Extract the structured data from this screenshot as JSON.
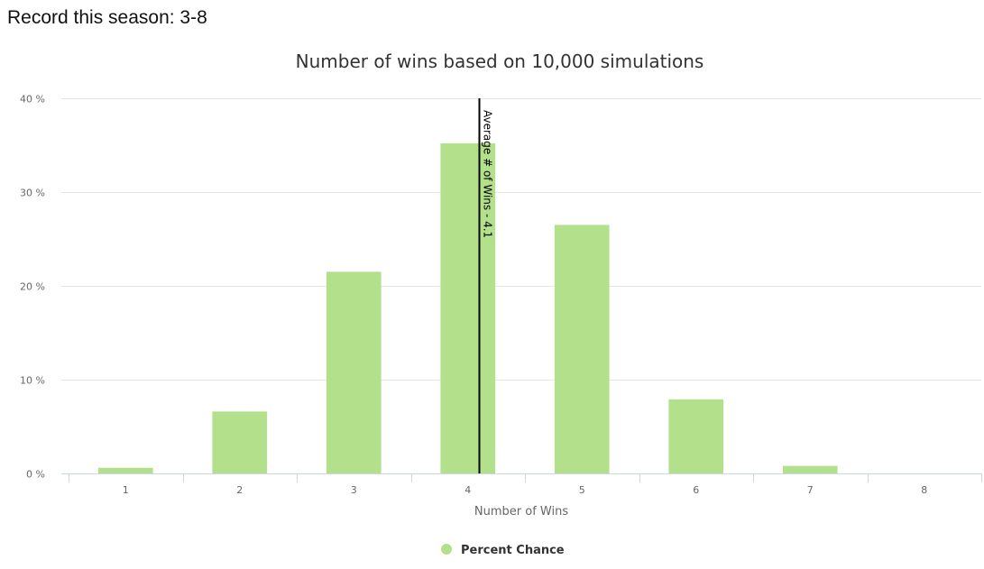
{
  "header": {
    "record_text": "Record this season: 3-8"
  },
  "chart_data": {
    "type": "bar",
    "title": "Number of wins based on 10,000 simulations",
    "xlabel": "Number of Wins",
    "ylabel": "",
    "categories": [
      "1",
      "2",
      "3",
      "4",
      "5",
      "6",
      "7",
      "8"
    ],
    "series": [
      {
        "name": "Percent Chance",
        "color": "#b3e08a",
        "values": [
          0.6,
          6.6,
          21.5,
          35.2,
          26.5,
          7.9,
          0.8,
          0.0
        ]
      }
    ],
    "ylim": [
      0,
      40
    ],
    "yticks": [
      0,
      10,
      20,
      30,
      40
    ],
    "ytick_labels": [
      "0 %",
      "10 %",
      "20 %",
      "30 %",
      "40 %"
    ],
    "grid": true,
    "legend_position": "bottom-center",
    "reference_line": {
      "x": 4.1,
      "label": "Average # of Wins - 4.1",
      "color": "#000000"
    }
  }
}
